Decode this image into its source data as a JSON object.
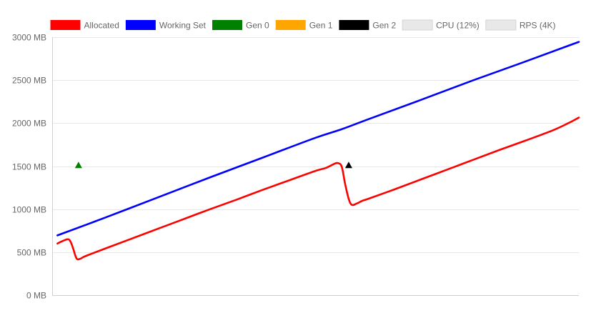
{
  "chart_data": {
    "type": "line",
    "yunit": "MB",
    "ylim": [
      0,
      3000
    ],
    "yticks": [
      0,
      500,
      1000,
      1500,
      2000,
      2500,
      3000
    ],
    "ytick_labels": [
      "0 MB",
      "500 MB",
      "1000 MB",
      "1500 MB",
      "2000 MB",
      "2500 MB",
      "3000 MB"
    ],
    "xlim": [
      0,
      100
    ],
    "grid": true,
    "legend_position": "top",
    "legend": [
      {
        "label": "Allocated",
        "color": "#ff0000",
        "hidden": false
      },
      {
        "label": "Working Set",
        "color": "#0000ff",
        "hidden": false
      },
      {
        "label": "Gen 0",
        "color": "#008000",
        "hidden": false
      },
      {
        "label": "Gen 1",
        "color": "#ffa500",
        "hidden": false
      },
      {
        "label": "Gen 2",
        "color": "#000000",
        "hidden": false
      },
      {
        "label": "CPU (12%)",
        "color": "#e8e8e8",
        "hidden": true
      },
      {
        "label": "RPS (4K)",
        "color": "#e8e8e8",
        "hidden": true
      }
    ],
    "series": [
      {
        "name": "Allocated",
        "color": "#ff0000",
        "points": [
          [
            1,
            600
          ],
          [
            2,
            630
          ],
          [
            3,
            650
          ],
          [
            3.5,
            620
          ],
          [
            4,
            540
          ],
          [
            4.6,
            430
          ],
          [
            5.2,
            420
          ],
          [
            6,
            445
          ],
          [
            7,
            470
          ],
          [
            10,
            540
          ],
          [
            15,
            655
          ],
          [
            20,
            770
          ],
          [
            25,
            885
          ],
          [
            30,
            1000
          ],
          [
            35,
            1110
          ],
          [
            40,
            1225
          ],
          [
            45,
            1335
          ],
          [
            50,
            1445
          ],
          [
            52,
            1480
          ],
          [
            53.5,
            1525
          ],
          [
            54.3,
            1535
          ],
          [
            55,
            1490
          ],
          [
            55.6,
            1300
          ],
          [
            56.3,
            1120
          ],
          [
            56.9,
            1050
          ],
          [
            57.8,
            1065
          ],
          [
            59,
            1100
          ],
          [
            60,
            1120
          ],
          [
            65,
            1230
          ],
          [
            70,
            1345
          ],
          [
            75,
            1460
          ],
          [
            80,
            1575
          ],
          [
            85,
            1690
          ],
          [
            90,
            1800
          ],
          [
            95,
            1915
          ],
          [
            98,
            2000
          ],
          [
            100,
            2065
          ]
        ]
      },
      {
        "name": "Working Set",
        "color": "#0000ff",
        "points": [
          [
            1,
            695
          ],
          [
            10,
            900
          ],
          [
            20,
            1135
          ],
          [
            30,
            1370
          ],
          [
            40,
            1600
          ],
          [
            50,
            1830
          ],
          [
            55,
            1930
          ],
          [
            60,
            2045
          ],
          [
            70,
            2270
          ],
          [
            80,
            2500
          ],
          [
            90,
            2720
          ],
          [
            98,
            2900
          ],
          [
            100,
            2945
          ]
        ]
      }
    ],
    "gc_markers": [
      {
        "name": "Gen 0",
        "color": "#008000",
        "x": 5,
        "y": 1510
      },
      {
        "name": "Gen 2",
        "color": "#000000",
        "x": 56.3,
        "y": 1510
      }
    ]
  }
}
